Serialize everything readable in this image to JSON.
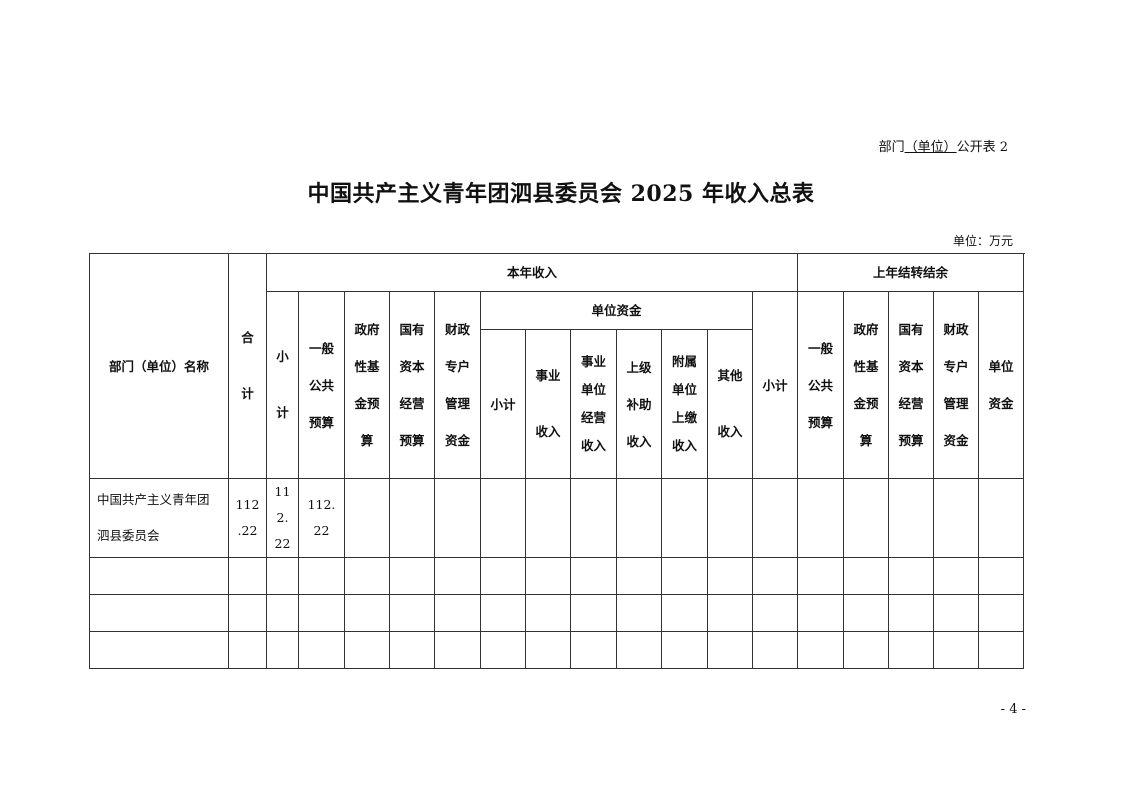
{
  "doc_label": {
    "prefix": "部门",
    "underlined": "（单位）",
    "suffix": "公开表 2"
  },
  "title": "中国共产主义青年团泗县委员会 2025 年收入总表",
  "unit": "单位：万元",
  "page_number": "- 4 -",
  "table": {
    "name_header": "部门（单位）名称",
    "total_header": "合\n计",
    "current_year": {
      "label": "本年收入",
      "subtotal": "小\n计",
      "general_budget": "一般\n公共\n预算",
      "gov_fund": "政府\n性基\n金预\n算",
      "state_capital": "国有\n资本\n经营\n预算",
      "fiscal_special": "财政\n专户\n管理\n资金",
      "unit_funds": {
        "label": "单位资金",
        "subtotal": "小计",
        "business_income": "事业\n收入",
        "operating_income": "事业\n单位\n经营\n收入",
        "superior_subsidy": "上级\n补助\n收入",
        "subordinate_remit": "附属\n单位\n上缴\n收入",
        "other_income": "其他\n收入"
      }
    },
    "carryover": {
      "label": "上年结转结余",
      "subtotal": "小计",
      "general_budget": "一般\n公共\n预算",
      "gov_fund": "政府\n性基\n金预\n算",
      "state_capital": "国有\n资本\n经营\n预算",
      "fiscal_special": "财政\n专户\n管理\n资金",
      "unit_funds": "单位\n资金"
    },
    "rows": [
      {
        "name": "中国共产主义青年团\n泗县委员会",
        "total": "112\n.22",
        "subtotal": "11\n2.\n22",
        "general_budget": "112.\n   22"
      }
    ]
  }
}
